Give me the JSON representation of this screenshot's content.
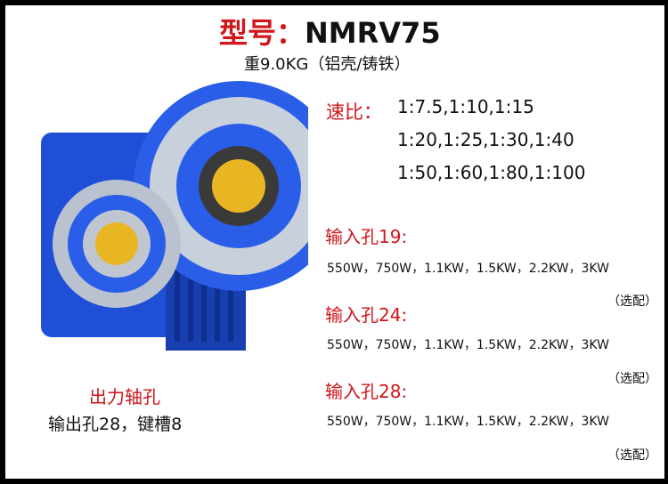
{
  "title": {
    "prefix": "型号：",
    "model": "NMRV75"
  },
  "weight": "重9.0KG（铝壳/铸铁）",
  "ratio": {
    "label": "速比：",
    "lines": [
      "1:7.5,1:10,1:15",
      "1:20,1:25,1:30,1:40",
      "1:50,1:60,1:80,1:100"
    ]
  },
  "inputs": [
    {
      "label": "输入孔19:",
      "powers": "550W，750W，1.1KW，1.5KW，2.2KW，3KW",
      "note": "（选配）"
    },
    {
      "label": "输入孔24:",
      "powers": "550W，750W，1.1KW，1.5KW，2.2KW，3KW",
      "note": "（选配）"
    },
    {
      "label": "输入孔28:",
      "powers": "550W，750W，1.1KW，1.5KW，2.2KW，3KW",
      "note": "（选配）"
    }
  ],
  "output": {
    "label": "出力轴孔",
    "desc": "输出孔28，键槽8"
  },
  "colors": {
    "accent": "#d0151b",
    "gearbox": "#1f4fd6"
  }
}
